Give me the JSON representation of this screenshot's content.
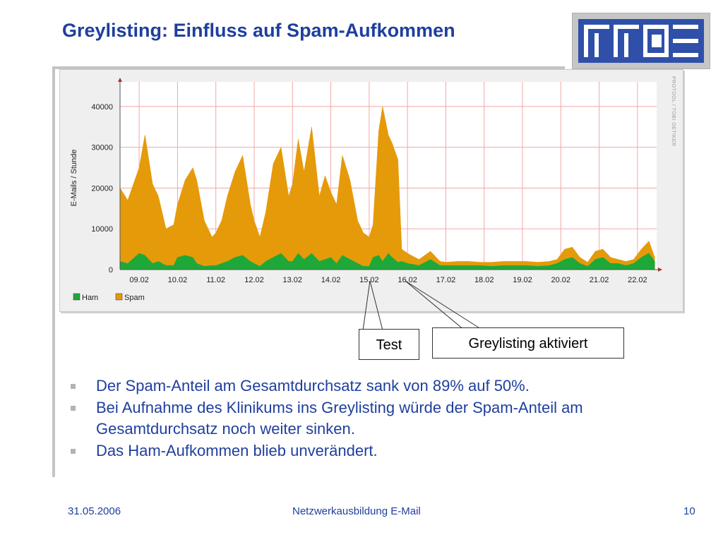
{
  "slide": {
    "title": "Greylisting: Einfluss auf Spam-Aufkommen",
    "credit": "PROTOOL / TOBI OETIKER",
    "callouts": {
      "test": "Test",
      "greylisting": "Greylisting aktiviert"
    },
    "bullets": [
      "Der Spam-Anteil am Gesamtdurchsatz sank von 89% auf 50%.",
      "Bei Aufnahme des Klinikums ins Greylisting würde der Spam-Anteil am Gesamtdurchsatz noch weiter sinken.",
      "Das Ham-Aufkommen blieb unverändert."
    ],
    "footer": {
      "date": "31.05.2006",
      "center": "Netzwerkausbildung E-Mail",
      "page": "10"
    }
  },
  "colors": {
    "ham": "#1fa83a",
    "spam": "#e59a0a",
    "title": "#1f3f9e",
    "logo_blue": "#2f4fa8"
  },
  "chart_data": {
    "type": "area",
    "ylabel": "E-Mails / Stunde",
    "ylim": [
      0,
      45000
    ],
    "yticks": [
      0,
      10000,
      20000,
      30000,
      40000
    ],
    "ytick_labels": [
      "0",
      "10000",
      "20000",
      "30000",
      "40000"
    ],
    "xlim": [
      8.5,
      22.5
    ],
    "x_ticks": [
      9,
      10,
      11,
      12,
      13,
      14,
      15,
      16,
      17,
      18,
      19,
      20,
      21,
      22
    ],
    "x_tick_labels": [
      "09.02",
      "10.02",
      "11.02",
      "12.02",
      "13.02",
      "14.02",
      "15.02",
      "16.02",
      "17.02",
      "18.02",
      "19.02",
      "20.02",
      "21.02",
      "22.02"
    ],
    "legend": [
      "Ham",
      "Spam"
    ],
    "legend_position": "bottom-left",
    "grid": true,
    "x": [
      8.5,
      8.7,
      9.0,
      9.15,
      9.35,
      9.5,
      9.7,
      9.9,
      10.0,
      10.2,
      10.4,
      10.5,
      10.7,
      10.9,
      11.0,
      11.15,
      11.3,
      11.5,
      11.7,
      11.9,
      12.0,
      12.15,
      12.3,
      12.5,
      12.7,
      12.9,
      13.0,
      13.15,
      13.3,
      13.5,
      13.7,
      13.85,
      14.0,
      14.15,
      14.3,
      14.5,
      14.7,
      14.85,
      15.0,
      15.1,
      15.25,
      15.35,
      15.5,
      15.6,
      15.75,
      15.85,
      16.0,
      16.3,
      16.6,
      16.85,
      17.0,
      17.3,
      17.6,
      17.9,
      18.2,
      18.5,
      18.8,
      19.1,
      19.4,
      19.7,
      19.9,
      20.1,
      20.3,
      20.5,
      20.7,
      20.9,
      21.1,
      21.3,
      21.5,
      21.7,
      21.9,
      22.1,
      22.3,
      22.45
    ],
    "series": [
      {
        "name": "Spam",
        "values": [
          20000,
          17000,
          25000,
          33000,
          21000,
          18000,
          10000,
          11000,
          16000,
          22000,
          25000,
          22000,
          12000,
          8000,
          9000,
          12000,
          18000,
          24000,
          28000,
          16000,
          12000,
          8000,
          14000,
          26000,
          30000,
          18000,
          21000,
          32000,
          24000,
          35000,
          18000,
          23000,
          19000,
          16000,
          28000,
          22000,
          12000,
          9000,
          8000,
          11000,
          34000,
          40000,
          33000,
          31000,
          27000,
          5000,
          4000,
          2500,
          4500,
          2000,
          1800,
          2000,
          2000,
          1800,
          1800,
          2000,
          2000,
          2000,
          1800,
          2000,
          2500,
          5000,
          5500,
          3000,
          1800,
          4500,
          5000,
          3000,
          2500,
          2000,
          2500,
          5000,
          7000,
          3000
        ]
      },
      {
        "name": "Ham",
        "values": [
          2000,
          1500,
          4000,
          3500,
          1500,
          2000,
          1000,
          1000,
          3000,
          3500,
          3000,
          1500,
          800,
          1000,
          1000,
          1500,
          2000,
          3000,
          3500,
          2000,
          1500,
          800,
          2000,
          3000,
          4000,
          2000,
          2000,
          4000,
          2500,
          4000,
          2000,
          2500,
          3000,
          1500,
          3500,
          2500,
          1500,
          800,
          800,
          3000,
          3500,
          2000,
          4000,
          3000,
          1800,
          2000,
          1500,
          1000,
          2500,
          1000,
          1000,
          1000,
          1000,
          1000,
          800,
          1000,
          1000,
          1000,
          800,
          1000,
          1500,
          2500,
          3000,
          1500,
          800,
          2500,
          3000,
          1500,
          1500,
          1000,
          1500,
          3000,
          4000,
          2000
        ]
      }
    ]
  }
}
